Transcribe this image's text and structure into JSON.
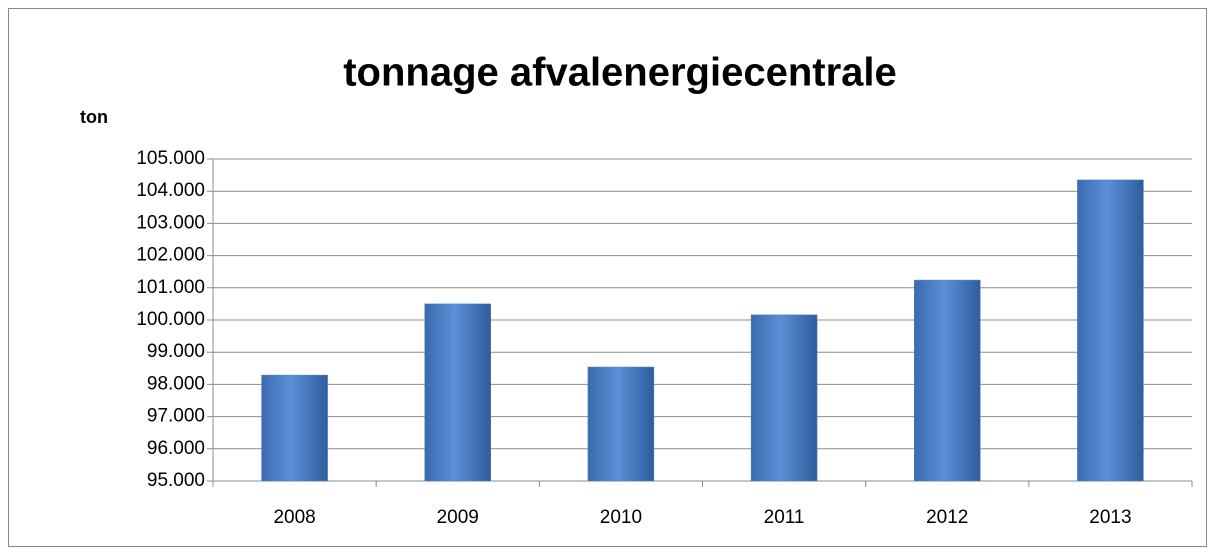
{
  "chart_data": {
    "type": "bar",
    "title": "tonnage afvalenergiecentrale",
    "y_label": "ton",
    "categories": [
      "2008",
      "2009",
      "2010",
      "2011",
      "2012",
      "2013"
    ],
    "values": [
      98290,
      100500,
      98540,
      100160,
      101240,
      104350
    ],
    "color": "#4f81bd",
    "ylim": [
      95000,
      105000
    ],
    "yticks": [
      {
        "value": 95000,
        "label": "95.000"
      },
      {
        "value": 96000,
        "label": "96.000"
      },
      {
        "value": 97000,
        "label": "97.000"
      },
      {
        "value": 98000,
        "label": "98.000"
      },
      {
        "value": 99000,
        "label": "99.000"
      },
      {
        "value": 100000,
        "label": "100.000"
      },
      {
        "value": 101000,
        "label": "101.000"
      },
      {
        "value": 102000,
        "label": "102.000"
      },
      {
        "value": 103000,
        "label": "103.000"
      },
      {
        "value": 104000,
        "label": "104.000"
      },
      {
        "value": 105000,
        "label": "105.000"
      }
    ],
    "grid": true
  }
}
